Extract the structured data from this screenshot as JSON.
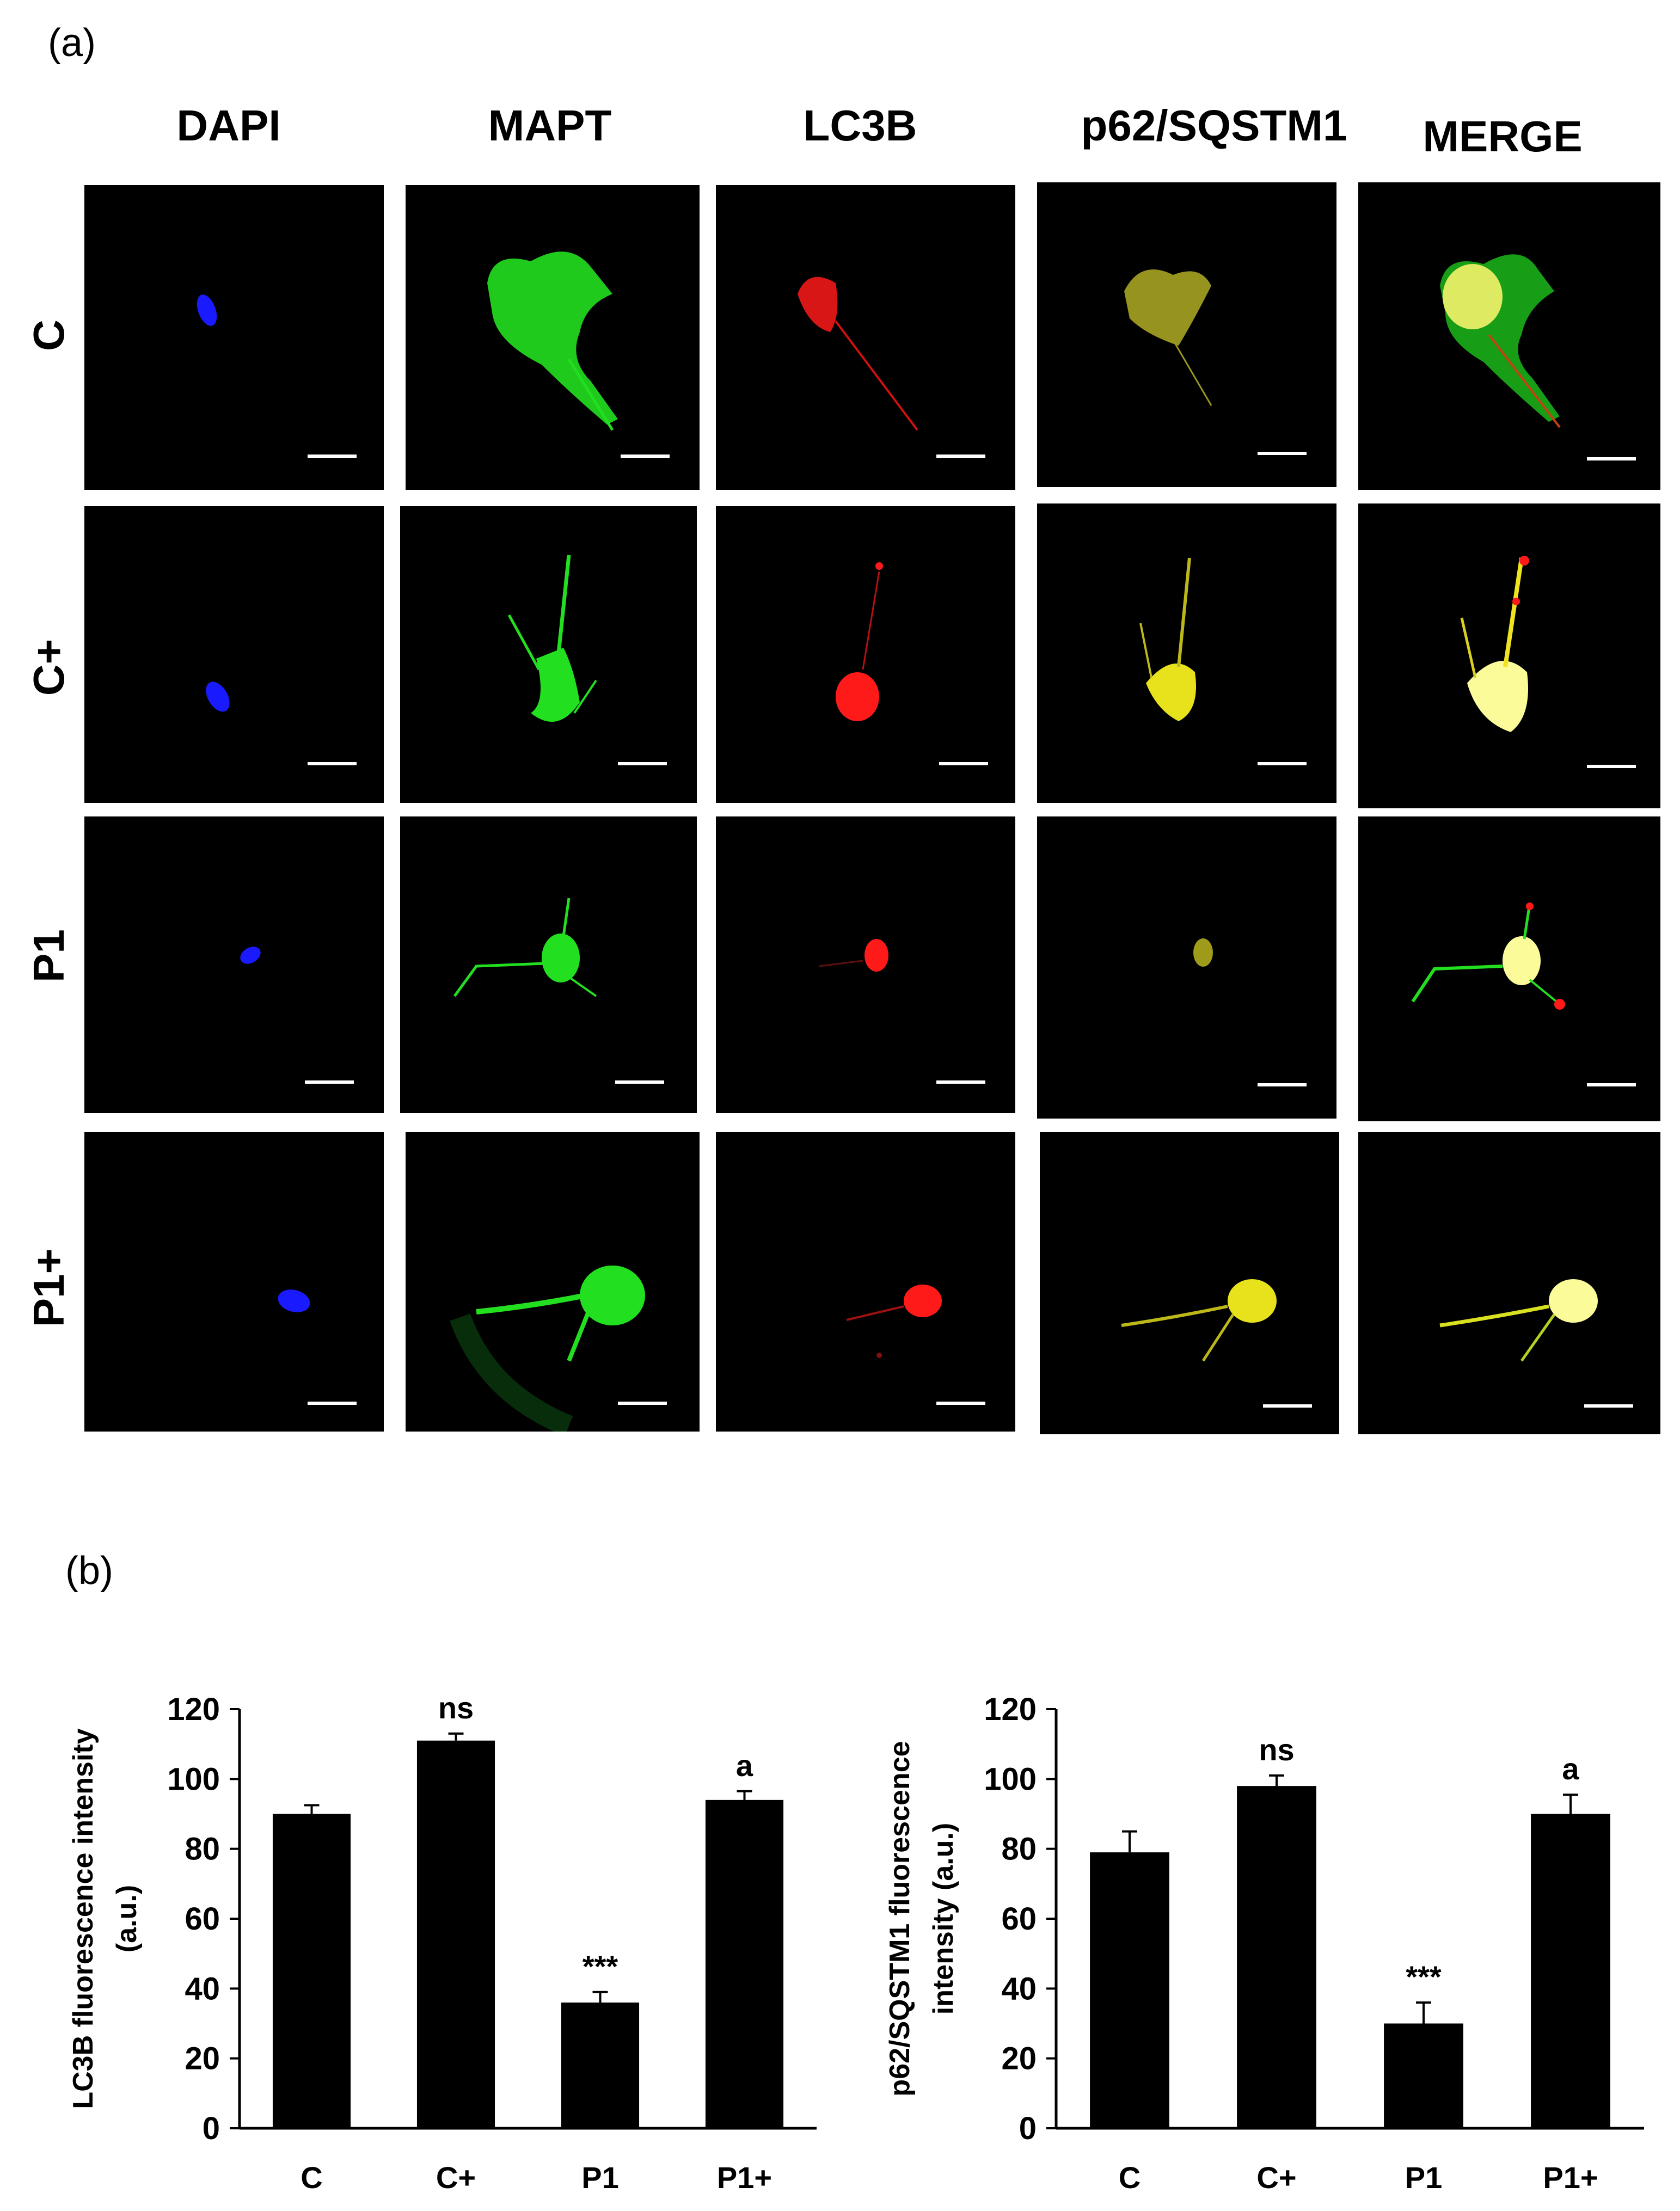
{
  "figure": {
    "panel_a_label": "(a)",
    "panel_b_label": "(b)",
    "columns": [
      "DAPI",
      "MAPT",
      "LC3B",
      "p62/SQSTM1",
      "MERGE"
    ],
    "rows": [
      "C",
      "C+",
      "P1",
      "P1+"
    ],
    "channel_colors": {
      "DAPI": "#1a1aff",
      "MAPT": "#22e01f",
      "LC3B": "#ff1a1a",
      "p62/SQSTM1": "#e8e21c",
      "MERGE": "#f4f36a"
    }
  },
  "chart_data": [
    {
      "type": "bar",
      "categories": [
        "C",
        "C+",
        "P1",
        "P1+"
      ],
      "values": [
        90,
        111,
        36,
        94
      ],
      "errors": [
        2.5,
        2,
        3,
        2.5
      ],
      "annotations": [
        "",
        "ns",
        "***",
        "a"
      ],
      "ylabel": "LC3B  fluorescence intensity (a.u.)",
      "ylabel_line1": "LC3B  fluorescence intensity",
      "ylabel_line2": "(a.u.)",
      "ylim": [
        0,
        120
      ],
      "yticks": [
        0,
        20,
        40,
        60,
        80,
        100,
        120
      ],
      "bar_color": "#000000"
    },
    {
      "type": "bar",
      "categories": [
        "C",
        "C+",
        "P1",
        "P1+"
      ],
      "values": [
        79,
        98,
        30,
        90
      ],
      "errors": [
        6,
        3,
        6,
        5.5
      ],
      "annotations": [
        "",
        "ns",
        "***",
        "a"
      ],
      "ylabel": "p62/SQSTM1  fluorescence intensity (a.u.)",
      "ylabel_line1": "p62/SQSTM1  fluorescence",
      "ylabel_line2": "intensity (a.u.)",
      "ylim": [
        0,
        120
      ],
      "yticks": [
        0,
        20,
        40,
        60,
        80,
        100,
        120
      ],
      "bar_color": "#000000"
    }
  ]
}
